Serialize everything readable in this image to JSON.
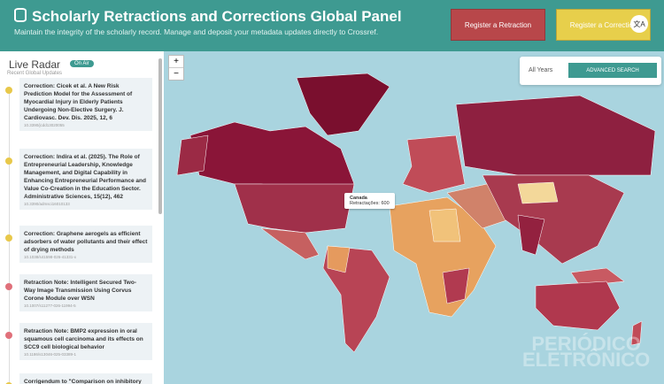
{
  "header": {
    "title": "Scholarly Retractions and Corrections Global Panel",
    "subtitle": "Maintain the integrity of the scholarly record. Manage and deposit your metadata updates directly to Crossref.",
    "buttons": [
      "Register a Retraction",
      "Register a Correction"
    ]
  },
  "sidebar": {
    "title": "Live Radar",
    "badge": "On Air",
    "subtitle": "Recent Global Updates",
    "items": [
      {
        "title": "Correction: Cicek et al. A New Risk Prediction Model for the Assessment of Myocardial Injury in Elderly Patients Undergoing Non-Elective Surgery. J. Cardiovasc. Dev. Dis. 2025, 12, 6",
        "doi": "10.3390/jcdd13020055",
        "color": "#e8c84a"
      },
      {
        "title": "Correction: Indira et al. (2025). The Role of Entrepreneurial Leadership, Knowledge Management, and Digital Capability in Enhancing Entrepreneurial Performance and Value Co-Creation in the Education Sector. Administrative Sciences, 15(12), 462",
        "doi": "10.3390/admsci16010133",
        "color": "#e8c84a"
      },
      {
        "title": "Correction: Graphene aerogels as efficient adsorbers of water pollutants and their effect of drying methods",
        "doi": "10.1038/s41598-026-41331-x",
        "color": "#e8c84a"
      },
      {
        "title": "Retraction Note: Intelligent Secured Two-Way Image Transmission Using Corvus Corone Module over WSN",
        "doi": "10.1007/s11277-026-11994-5",
        "color": "#e0707a"
      },
      {
        "title": "Retraction Note: BMP2 expression in oral squamous cell carcinoma and its effects on SCC9 cell biological behavior",
        "doi": "10.1186/s13046-025-03389-1",
        "color": "#e0707a"
      },
      {
        "title": "Corrigendum to \"Comparison on inhibitory",
        "doi": "",
        "color": "#e8c84a"
      }
    ]
  },
  "map": {
    "zoom_in": "+",
    "zoom_out": "−",
    "year_filter": "All Years",
    "search_button": "ADVANCED SEARCH",
    "tooltip": {
      "country": "Canada",
      "label": "Retractações: 600"
    },
    "watermark": [
      "PERIÓDICO",
      "ELETRÔNICO"
    ]
  }
}
